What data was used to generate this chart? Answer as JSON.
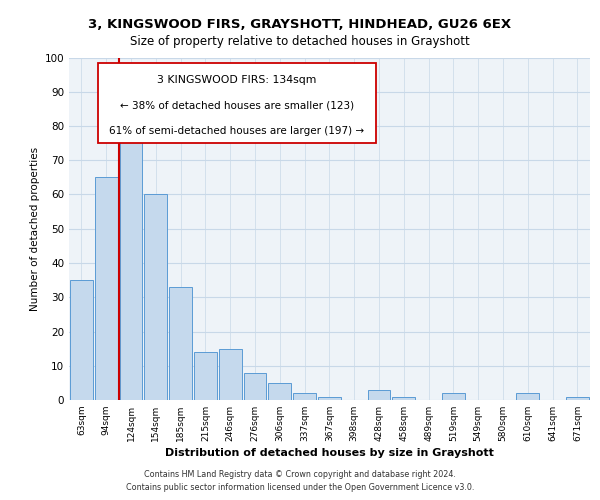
{
  "title1": "3, KINGSWOOD FIRS, GRAYSHOTT, HINDHEAD, GU26 6EX",
  "title2": "Size of property relative to detached houses in Grayshott",
  "xlabel": "Distribution of detached houses by size in Grayshott",
  "ylabel": "Number of detached properties",
  "bar_labels": [
    "63sqm",
    "94sqm",
    "124sqm",
    "154sqm",
    "185sqm",
    "215sqm",
    "246sqm",
    "276sqm",
    "306sqm",
    "337sqm",
    "367sqm",
    "398sqm",
    "428sqm",
    "458sqm",
    "489sqm",
    "519sqm",
    "549sqm",
    "580sqm",
    "610sqm",
    "641sqm",
    "671sqm"
  ],
  "bar_values": [
    35,
    65,
    80,
    60,
    33,
    14,
    15,
    8,
    5,
    2,
    1,
    0,
    3,
    1,
    0,
    2,
    0,
    0,
    2,
    0,
    1
  ],
  "bar_color": "#c5d9ed",
  "bar_edge_color": "#5b9bd5",
  "vline_color": "#cc0000",
  "ann_line1": "3 KINGSWOOD FIRS: 134sqm",
  "ann_line2": "← 38% of detached houses are smaller (123)",
  "ann_line3": "61% of semi-detached houses are larger (197) →",
  "ylim": [
    0,
    100
  ],
  "yticks": [
    0,
    10,
    20,
    30,
    40,
    50,
    60,
    70,
    80,
    90,
    100
  ],
  "grid_color": "#c8d8e8",
  "bg_color": "#eef3f8",
  "footer1": "Contains HM Land Registry data © Crown copyright and database right 2024.",
  "footer2": "Contains public sector information licensed under the Open Government Licence v3.0."
}
